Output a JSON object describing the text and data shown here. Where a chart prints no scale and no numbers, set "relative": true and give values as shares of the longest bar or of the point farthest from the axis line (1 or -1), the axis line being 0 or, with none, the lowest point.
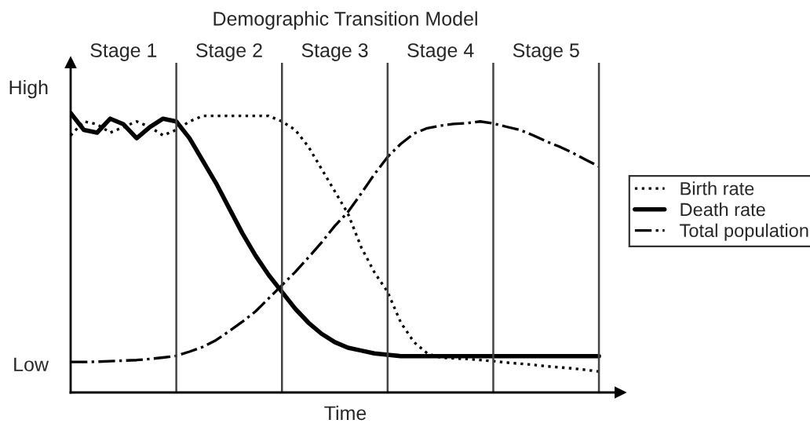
{
  "chart_data": {
    "type": "line",
    "title": "Demographic Transition Model",
    "xlabel": "Time",
    "relative": true,
    "legend": "right",
    "grid": "x",
    "annotations": [
      "High",
      "Low",
      "Stage 1",
      "Stage 2",
      "Stage 3",
      "Stage 4",
      "Stage 5"
    ],
    "categories": [
      null,
      null,
      null,
      null,
      null,
      null,
      null,
      null,
      null,
      null,
      null,
      null,
      null,
      null,
      null,
      null,
      null,
      null,
      null,
      null,
      null,
      null,
      null,
      null,
      null,
      null,
      null,
      null,
      null,
      null,
      null,
      null,
      null,
      null,
      null,
      null,
      null,
      null,
      null,
      null,
      null
    ],
    "series": [
      {
        "name": "Birth rate",
        "color": "#000000",
        "line_style": "dotted",
        "values": [
          0.92,
          0.97,
          0.96,
          0.93,
          0.95,
          0.97,
          0.95,
          0.92,
          0.94,
          0.97,
          0.99,
          0.99,
          0.99,
          0.99,
          0.99,
          0.99,
          0.97,
          0.94,
          0.88,
          0.8,
          0.72,
          0.64,
          0.52,
          0.43,
          0.36,
          0.25,
          0.18,
          0.14,
          0.125,
          0.122,
          0.12,
          0.116,
          0.112,
          0.107,
          0.103,
          0.099,
          0.094,
          0.09,
          0.086,
          0.081,
          0.075
        ]
      },
      {
        "name": "Death rate",
        "color": "#000000",
        "line_style": "solid",
        "values": [
          1.0,
          0.94,
          0.93,
          0.98,
          0.96,
          0.91,
          0.95,
          0.98,
          0.97,
          0.91,
          0.83,
          0.75,
          0.66,
          0.57,
          0.49,
          0.42,
          0.36,
          0.3,
          0.25,
          0.21,
          0.18,
          0.16,
          0.15,
          0.14,
          0.135,
          0.13,
          0.13,
          0.13,
          0.13,
          0.13,
          0.13,
          0.13,
          0.13,
          0.13,
          0.13,
          0.13,
          0.13,
          0.13,
          0.13,
          0.13,
          0.13
        ]
      },
      {
        "name": "Total population",
        "color": "#000000",
        "line_style": "dashdot",
        "values": [
          0.109,
          0.109,
          0.11,
          0.112,
          0.114,
          0.116,
          0.12,
          0.125,
          0.131,
          0.146,
          0.163,
          0.187,
          0.219,
          0.253,
          0.29,
          0.337,
          0.384,
          0.431,
          0.483,
          0.537,
          0.596,
          0.646,
          0.712,
          0.781,
          0.843,
          0.89,
          0.927,
          0.946,
          0.955,
          0.961,
          0.964,
          0.97,
          0.963,
          0.951,
          0.94,
          0.921,
          0.899,
          0.88,
          0.858,
          0.833,
          0.809
        ]
      }
    ]
  }
}
